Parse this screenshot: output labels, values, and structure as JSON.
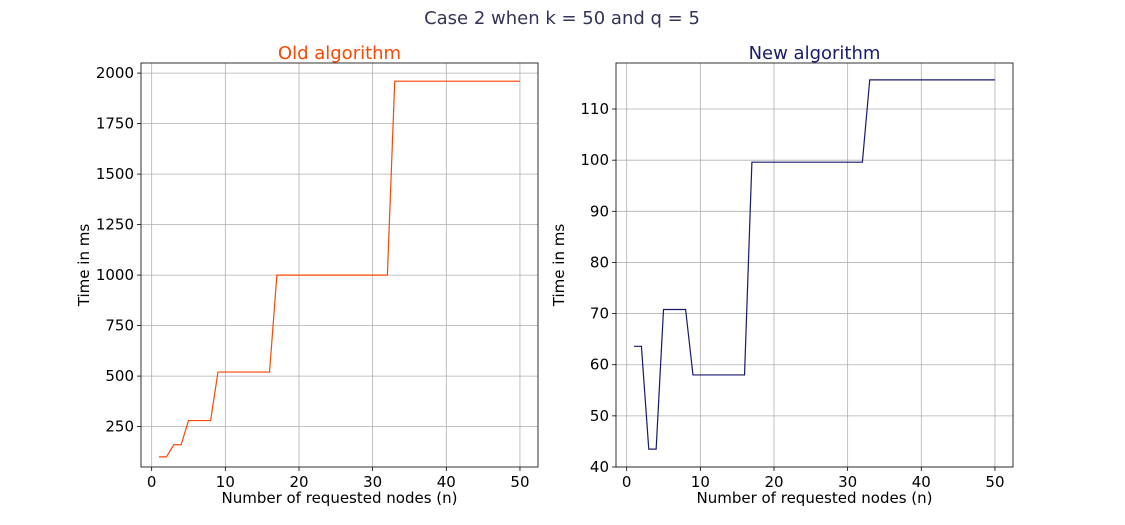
{
  "figure_title": "Case 2 when k = 50 and q = 5",
  "chart_data": [
    {
      "type": "line",
      "title": "Old algorithm",
      "title_color": "#ff4500",
      "line_color": "#ff4500",
      "xlabel": "Number of requested nodes (n)",
      "ylabel": "Time in ms",
      "xlim": [
        -1.45,
        52.45
      ],
      "ylim": [
        50,
        2050
      ],
      "xticks": [
        0,
        10,
        20,
        30,
        40,
        50
      ],
      "yticks": [
        250,
        500,
        750,
        1000,
        1250,
        1500,
        1750,
        2000
      ],
      "grid": true,
      "series": [
        {
          "x": [
            1,
            2,
            3,
            4,
            5,
            6,
            7,
            8,
            9,
            10,
            11,
            12,
            13,
            14,
            15,
            16,
            17,
            18,
            19,
            20,
            21,
            22,
            23,
            24,
            25,
            26,
            27,
            28,
            29,
            30,
            31,
            32,
            33,
            34,
            35,
            36,
            37,
            38,
            39,
            40,
            41,
            42,
            43,
            44,
            45,
            46,
            47,
            48,
            49,
            50
          ],
          "y": [
            100,
            100,
            160,
            160,
            280,
            280,
            280,
            280,
            520,
            520,
            520,
            520,
            520,
            520,
            520,
            520,
            1000,
            1000,
            1000,
            1000,
            1000,
            1000,
            1000,
            1000,
            1000,
            1000,
            1000,
            1000,
            1000,
            1000,
            1000,
            1000,
            1960,
            1960,
            1960,
            1960,
            1960,
            1960,
            1960,
            1960,
            1960,
            1960,
            1960,
            1960,
            1960,
            1960,
            1960,
            1960,
            1960,
            1960
          ]
        }
      ]
    },
    {
      "type": "line",
      "title": "New algorithm",
      "title_color": "#191970",
      "line_color": "#191970",
      "xlabel": "Number of requested nodes (n)",
      "ylabel": "Time in ms",
      "xlim": [
        -1.45,
        52.45
      ],
      "ylim": [
        40,
        119
      ],
      "xticks": [
        0,
        10,
        20,
        30,
        40,
        50
      ],
      "yticks": [
        40,
        50,
        60,
        70,
        80,
        90,
        100,
        110
      ],
      "grid": true,
      "series": [
        {
          "x": [
            1,
            2,
            3,
            4,
            5,
            6,
            7,
            8,
            9,
            10,
            11,
            12,
            13,
            14,
            15,
            16,
            17,
            18,
            19,
            20,
            21,
            22,
            23,
            24,
            25,
            26,
            27,
            28,
            29,
            30,
            31,
            32,
            33,
            34,
            35,
            36,
            37,
            38,
            39,
            40,
            41,
            42,
            43,
            44,
            45,
            46,
            47,
            48,
            49,
            50
          ],
          "y": [
            63.6,
            63.6,
            43.5,
            43.5,
            70.8,
            70.8,
            70.8,
            70.8,
            58.0,
            58.0,
            58.0,
            58.0,
            58.0,
            58.0,
            58.0,
            58.0,
            99.6,
            99.6,
            99.6,
            99.6,
            99.6,
            99.6,
            99.6,
            99.6,
            99.6,
            99.6,
            99.6,
            99.6,
            99.6,
            99.6,
            99.6,
            99.6,
            115.7,
            115.7,
            115.7,
            115.7,
            115.7,
            115.7,
            115.7,
            115.7,
            115.7,
            115.7,
            115.7,
            115.7,
            115.7,
            115.7,
            115.7,
            115.7,
            115.7,
            115.7
          ]
        }
      ]
    }
  ]
}
